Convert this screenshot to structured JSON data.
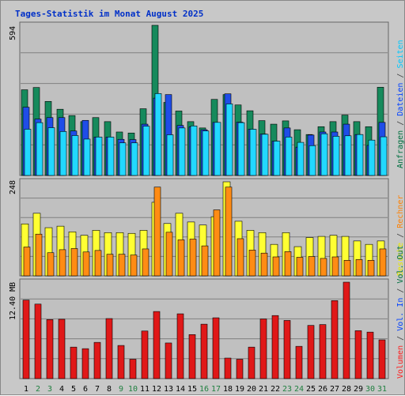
{
  "title": "Tages-Statistik im Monat August 2025",
  "panels": {
    "top": {
      "max_label": "594"
    },
    "middle": {
      "max_label": "248"
    },
    "bottom": {
      "max_label": "12.40 MB"
    }
  },
  "legend": {
    "top": [
      {
        "text": "Anfragen",
        "color": "#007040"
      },
      {
        "text": " / ",
        "color": "#404040"
      },
      {
        "text": "Dateien",
        "color": "#0040ff"
      },
      {
        "text": " / ",
        "color": "#404040"
      },
      {
        "text": "Seiten",
        "color": "#00c8ff"
      }
    ],
    "middle": [
      {
        "text": "Besuche",
        "color": "#e8e800"
      },
      {
        "text": " / ",
        "color": "#404040"
      },
      {
        "text": "Rechner",
        "color": "#ff8000"
      }
    ],
    "bottom": [
      {
        "text": "Volumen",
        "color": "#ff2020"
      },
      {
        "text": " / ",
        "color": "#404040"
      },
      {
        "text": "Vol. In",
        "color": "#0040ff"
      },
      {
        "text": " / ",
        "color": "#404040"
      },
      {
        "text": "Vol. Out",
        "color": "#007040"
      }
    ]
  },
  "colors": {
    "background": "#c8c8c8",
    "grid": "#808080",
    "anfragen": "#168a5c",
    "dateien": "#1f4de8",
    "seiten": "#22d8ff",
    "besuche": "#ffff33",
    "rechner": "#ff8c14",
    "volumen": "#e01818",
    "weekday_label": "#000000",
    "weekend_label": "#208040"
  },
  "chart_data": {
    "type": "bar",
    "days": [
      "1",
      "2",
      "3",
      "4",
      "5",
      "6",
      "7",
      "8",
      "9",
      "10",
      "11",
      "12",
      "13",
      "14",
      "15",
      "16",
      "17",
      "18",
      "19",
      "20",
      "21",
      "22",
      "23",
      "24",
      "25",
      "26",
      "27",
      "28",
      "29",
      "30",
      "31"
    ],
    "weekend_days": [
      "2",
      "3",
      "9",
      "10",
      "16",
      "17",
      "23",
      "24",
      "30",
      "31"
    ],
    "series": [
      {
        "name": "Anfragen",
        "panel": "top",
        "ylim": [
          0,
          594
        ],
        "values": [
          339,
          348,
          293,
          262,
          237,
          213,
          229,
          213,
          172,
          168,
          264,
          594,
          289,
          255,
          213,
          188,
          301,
          320,
          279,
          256,
          217,
          203,
          216,
          181,
          162,
          193,
          213,
          239,
          213,
          193,
          349
        ]
      },
      {
        "name": "Dateien",
        "panel": "top",
        "ylim": [
          0,
          594
        ],
        "values": [
          270,
          223,
          229,
          229,
          176,
          218,
          152,
          152,
          143,
          142,
          203,
          306,
          320,
          198,
          192,
          181,
          210,
          323,
          211,
          183,
          164,
          136,
          188,
          112,
          160,
          172,
          172,
          203,
          162,
          119,
          210
        ]
      },
      {
        "name": "Seiten",
        "panel": "top",
        "ylim": [
          0,
          594
        ],
        "values": [
          183,
          209,
          189,
          174,
          158,
          144,
          152,
          152,
          129,
          129,
          195,
          324,
          161,
          188,
          196,
          176,
          210,
          283,
          209,
          183,
          163,
          136,
          152,
          131,
          118,
          165,
          155,
          157,
          162,
          140,
          153
        ]
      },
      {
        "name": "Besuche",
        "panel": "middle",
        "ylim": [
          0,
          248
        ],
        "values": [
          137,
          165,
          127,
          131,
          116,
          107,
          120,
          114,
          114,
          112,
          120,
          194,
          138,
          165,
          142,
          134,
          156,
          248,
          144,
          120,
          114,
          83,
          114,
          77,
          101,
          104,
          107,
          104,
          92,
          83,
          92
        ]
      },
      {
        "name": "Rechner",
        "panel": "middle",
        "ylim": [
          0,
          248
        ],
        "values": [
          76,
          110,
          61,
          69,
          72,
          63,
          67,
          57,
          57,
          55,
          71,
          234,
          115,
          95,
          97,
          79,
          174,
          234,
          98,
          68,
          60,
          50,
          64,
          49,
          51,
          46,
          50,
          41,
          43,
          41,
          71
        ]
      },
      {
        "name": "Volumen",
        "panel": "bottom",
        "ylim": [
          0,
          12.4
        ],
        "values": [
          10.1,
          9.58,
          7.59,
          7.63,
          4.05,
          3.85,
          4.66,
          7.72,
          4.26,
          2.49,
          6.12,
          8.63,
          4.58,
          8.33,
          5.66,
          7.0,
          7.82,
          2.64,
          2.49,
          4.05,
          7.67,
          8.11,
          7.48,
          4.15,
          6.84,
          6.95,
          10.03,
          12.4,
          6.16,
          5.98,
          4.98
        ]
      }
    ]
  },
  "x_axis_labels_color_note": "",
  "_": ""
}
